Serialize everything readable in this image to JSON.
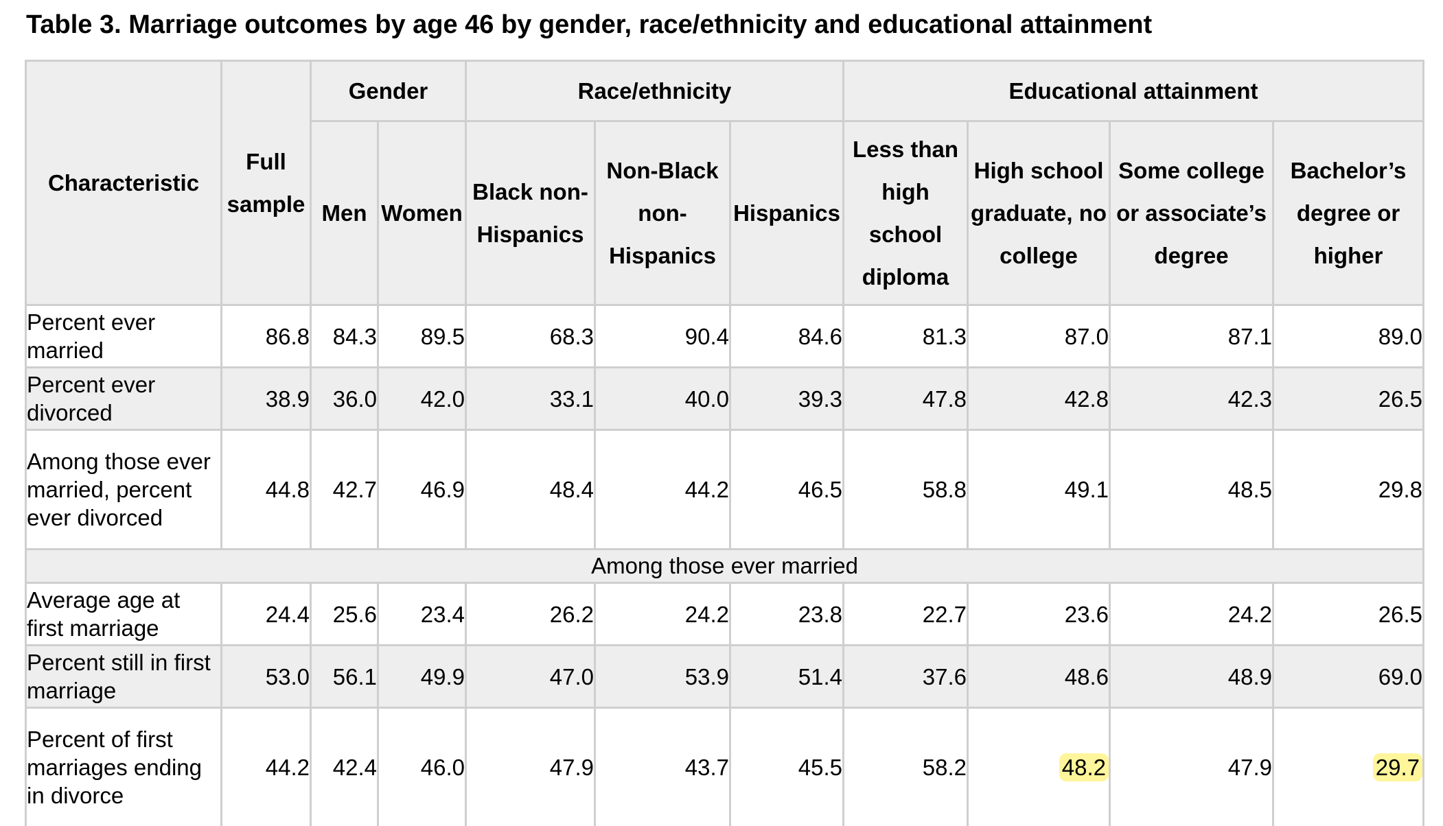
{
  "title": "Table 3. Marriage outcomes by age 46 by gender, race/ethnicity and educational attainment",
  "header": {
    "characteristic": "Characteristic",
    "full_sample": "Full sample",
    "gender": "Gender",
    "race_ethnicity": "Race/ethnicity",
    "education": "Educational attainment",
    "columns": [
      "Men",
      "Women",
      "Black non-Hispanics",
      "Non-Black non-Hispanics",
      "Hispanics",
      "Less than high school diploma",
      "High school graduate, no college",
      "Some college or associate’s degree",
      "Bachelor’s degree or higher"
    ]
  },
  "rows_top": [
    {
      "label": "Percent ever married",
      "values": [
        "86.8",
        "84.3",
        "89.5",
        "68.3",
        "90.4",
        "84.6",
        "81.3",
        "87.0",
        "87.1",
        "89.0"
      ]
    },
    {
      "label": "Percent ever divorced",
      "values": [
        "38.9",
        "36.0",
        "42.0",
        "33.1",
        "40.0",
        "39.3",
        "47.8",
        "42.8",
        "42.3",
        "26.5"
      ]
    },
    {
      "label": "Among those ever married, percent ever divorced",
      "values": [
        "44.8",
        "42.7",
        "46.9",
        "48.4",
        "44.2",
        "46.5",
        "58.8",
        "49.1",
        "48.5",
        "29.8"
      ]
    }
  ],
  "section_label": "Among those ever married",
  "rows_bottom": [
    {
      "label": "Average age at first marriage",
      "values": [
        "24.4",
        "25.6",
        "23.4",
        "26.2",
        "24.2",
        "23.8",
        "22.7",
        "23.6",
        "24.2",
        "26.5"
      ]
    },
    {
      "label": "Percent still in first marriage",
      "values": [
        "53.0",
        "56.1",
        "49.9",
        "47.0",
        "53.9",
        "51.4",
        "37.6",
        "48.6",
        "48.9",
        "69.0"
      ]
    },
    {
      "label": "Percent of first marriages ending in divorce",
      "values": [
        "44.2",
        "42.4",
        "46.0",
        "47.9",
        "43.7",
        "45.5",
        "58.2",
        "48.2",
        "47.9",
        "29.7"
      ]
    }
  ],
  "highlight_color": "#fff59b"
}
